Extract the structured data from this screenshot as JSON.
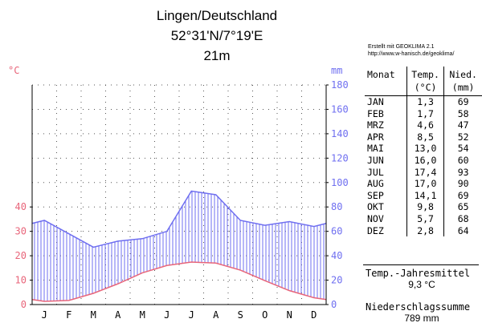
{
  "header": {
    "station": "Lingen/Deutschland",
    "coords": "52°31'N/7°19'E",
    "elevation": "21m"
  },
  "credit": {
    "line1": "Erstellt mit GEOKLIMA 2.1",
    "line2": "http://www.w-hanisch.de/geoklima/"
  },
  "table": {
    "headers": [
      [
        "Monat"
      ],
      [
        "Temp.",
        "(°C)"
      ],
      [
        "Nied.",
        "(mm)"
      ]
    ],
    "rows": [
      [
        "JAN",
        "1,3",
        "69"
      ],
      [
        "FEB",
        "1,7",
        "58"
      ],
      [
        "MRZ",
        "4,6",
        "47"
      ],
      [
        "APR",
        "8,5",
        "52"
      ],
      [
        "MAI",
        "13,0",
        "54"
      ],
      [
        "JUN",
        "16,0",
        "60"
      ],
      [
        "JUL",
        "17,4",
        "93"
      ],
      [
        "AUG",
        "17,0",
        "90"
      ],
      [
        "SEP",
        "14,1",
        "69"
      ],
      [
        "OKT",
        "9,8",
        "65"
      ],
      [
        "NOV",
        "5,7",
        "68"
      ],
      [
        "DEZ",
        "2,8",
        "64"
      ]
    ]
  },
  "summary": {
    "temp_label": "Temp.-Jahresmittel",
    "temp_value": "9,3 °C",
    "precip_label": "Niederschlagssumme",
    "precip_value": "789 mm"
  },
  "chart_data": {
    "type": "line",
    "categories": [
      "J",
      "F",
      "M",
      "A",
      "M",
      "J",
      "J",
      "A",
      "S",
      "O",
      "N",
      "D"
    ],
    "series": [
      {
        "axis": "left",
        "unit": "°C",
        "color": "#e8657a",
        "values": [
          1.3,
          1.7,
          4.6,
          8.5,
          13.0,
          16.0,
          17.4,
          17.0,
          14.1,
          9.8,
          5.7,
          2.8
        ]
      },
      {
        "axis": "right",
        "unit": "mm",
        "color": "#6f6ff0",
        "values": [
          69,
          58,
          47,
          52,
          54,
          60,
          93,
          90,
          69,
          65,
          68,
          64
        ]
      }
    ],
    "y_left": {
      "label": "°C",
      "ticks": [
        0,
        10,
        20,
        30,
        40
      ],
      "range": [
        0,
        90
      ]
    },
    "y_right": {
      "label": "mm",
      "ticks": [
        0,
        20,
        40,
        60,
        80,
        100,
        120,
        140,
        160,
        180
      ],
      "range": [
        0,
        180
      ]
    },
    "grid": true,
    "hatch": "precipitation above temperature (humid)"
  }
}
